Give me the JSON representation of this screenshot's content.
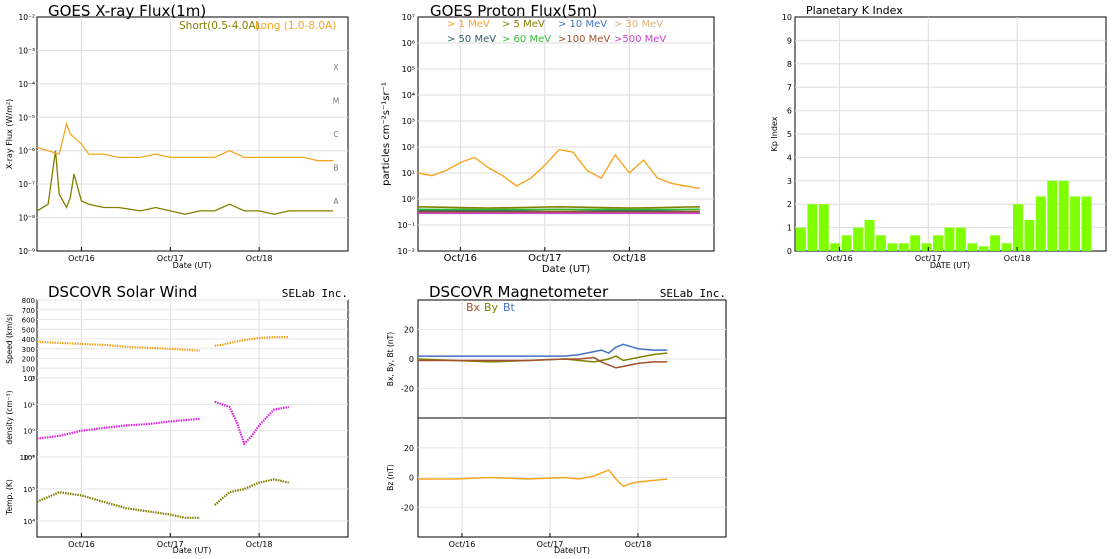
{
  "chart_data": [
    {
      "id": "xray",
      "type": "line",
      "title": "GOES X-ray Flux(1m)",
      "xlabel": "Date (UT)",
      "ylabel": "X-ray Flux (W/m²)",
      "yscale": "log",
      "ylim_exp": [
        -9,
        -2
      ],
      "y_ticks": [
        "10⁻⁹",
        "10⁻⁸",
        "10⁻⁷",
        "10⁻⁶",
        "10⁻⁵",
        "10⁻⁴",
        "10⁻³",
        "10⁻²"
      ],
      "x_ticks": [
        "Oct/16",
        "Oct/17",
        "Oct/18"
      ],
      "class_labels": [
        "A",
        "B",
        "C",
        "M",
        "X"
      ],
      "series": [
        {
          "name": "Short(0.5-4.0A)",
          "color": "#808000",
          "x_hours": [
            0,
            3,
            5,
            6,
            8,
            9,
            10,
            12,
            14,
            18,
            22,
            28,
            32,
            36,
            40,
            44,
            48,
            52,
            56,
            60,
            64,
            68,
            72,
            76,
            80
          ],
          "log_values": [
            -7.8,
            -7.6,
            -6.0,
            -7.3,
            -7.7,
            -7.4,
            -6.7,
            -7.5,
            -7.6,
            -7.7,
            -7.7,
            -7.8,
            -7.7,
            -7.8,
            -7.9,
            -7.8,
            -7.8,
            -7.6,
            -7.8,
            -7.8,
            -7.9,
            -7.8,
            -7.8,
            -7.8,
            -7.8
          ]
        },
        {
          "name": "Long (1.0-8.0A)",
          "color": "#f5a623",
          "x_hours": [
            0,
            3,
            6,
            8,
            9,
            10,
            12,
            14,
            18,
            22,
            28,
            32,
            36,
            40,
            44,
            48,
            52,
            56,
            60,
            64,
            68,
            72,
            76,
            80
          ],
          "log_values": [
            -5.9,
            -6.0,
            -6.1,
            -5.2,
            -5.5,
            -5.6,
            -5.8,
            -6.1,
            -6.1,
            -6.2,
            -6.2,
            -6.1,
            -6.2,
            -6.2,
            -6.2,
            -6.2,
            -6.0,
            -6.2,
            -6.2,
            -6.2,
            -6.2,
            -6.2,
            -6.3,
            -6.3
          ]
        }
      ]
    },
    {
      "id": "proton",
      "type": "line",
      "title": "GOES Proton Flux(5m)",
      "xlabel": "Date (UT)",
      "ylabel": "particles cm⁻²s⁻¹sr⁻¹",
      "yscale": "log",
      "ylim_exp": [
        -2,
        7
      ],
      "y_ticks": [
        "10⁻²",
        "10⁻¹",
        "10⁰",
        "10¹",
        "10²",
        "10³",
        "10⁴",
        "10⁵",
        "10⁶",
        "10⁷"
      ],
      "x_ticks": [
        "Oct/16",
        "Oct/17",
        "Oct/18"
      ],
      "series": [
        {
          "name": "> 1 MeV",
          "color": "#f5a623",
          "x_hours": [
            0,
            4,
            8,
            12,
            16,
            20,
            24,
            28,
            32,
            36,
            40,
            44,
            48,
            52,
            56,
            60,
            64,
            68,
            72,
            76,
            80
          ],
          "log_values": [
            1.0,
            0.9,
            1.1,
            1.4,
            1.6,
            1.2,
            0.9,
            0.5,
            0.8,
            1.3,
            1.9,
            1.8,
            1.1,
            0.8,
            1.7,
            1.0,
            1.5,
            0.8,
            0.6,
            0.5,
            0.4
          ]
        },
        {
          "name": "> 5 MeV",
          "color": "#808000",
          "x_hours": [
            0,
            20,
            40,
            60,
            80
          ],
          "log_values": [
            -0.3,
            -0.35,
            -0.3,
            -0.35,
            -0.3
          ]
        },
        {
          "name": "> 10 MeV",
          "color": "#4472c4",
          "x_hours": [
            0,
            20,
            40,
            60,
            80
          ],
          "log_values": [
            -0.4,
            -0.45,
            -0.4,
            -0.45,
            -0.4
          ]
        },
        {
          "name": "> 30 MeV",
          "color": "#e0b070",
          "x_hours": [
            0,
            20,
            40,
            60,
            80
          ],
          "log_values": [
            -0.45,
            -0.5,
            -0.45,
            -0.5,
            -0.45
          ]
        },
        {
          "name": "> 50 MeV",
          "color": "#2f5f5f",
          "x_hours": [
            0,
            20,
            40,
            60,
            80
          ],
          "log_values": [
            -0.45,
            -0.45,
            -0.5,
            -0.45,
            -0.5
          ]
        },
        {
          "name": "> 60 MeV",
          "color": "#33bb33",
          "x_hours": [
            0,
            20,
            40,
            60,
            80
          ],
          "log_values": [
            -0.4,
            -0.4,
            -0.4,
            -0.4,
            -0.4
          ]
        },
        {
          "name": ">100 MeV",
          "color": "#a0522d",
          "x_hours": [
            0,
            20,
            40,
            60,
            80
          ],
          "log_values": [
            -0.5,
            -0.5,
            -0.5,
            -0.5,
            -0.5
          ]
        },
        {
          "name": ">500 MeV",
          "color": "#cc44cc",
          "x_hours": [
            0,
            20,
            40,
            60,
            80
          ],
          "log_values": [
            -0.55,
            -0.55,
            -0.55,
            -0.55,
            -0.55
          ]
        }
      ]
    },
    {
      "id": "kp",
      "type": "bar",
      "title": "Planetary K Index",
      "xlabel": "DATE (UT)",
      "ylabel": "Kp Index",
      "ylim": [
        0,
        10
      ],
      "y_ticks": [
        0,
        1,
        2,
        3,
        4,
        5,
        6,
        7,
        8,
        9,
        10
      ],
      "x_ticks": [
        "Oct/16",
        "Oct/17",
        "Oct/18"
      ],
      "bar_color": "#7fff00",
      "values": [
        1.0,
        2.0,
        2.0,
        0.33,
        0.67,
        1.0,
        1.33,
        0.67,
        0.33,
        0.33,
        0.67,
        0.33,
        0.67,
        1.0,
        1.0,
        0.33,
        0.2,
        0.67,
        0.33,
        2.0,
        1.33,
        2.33,
        3.0,
        3.0,
        2.33,
        2.33
      ]
    },
    {
      "id": "solarwind",
      "type": "scatter",
      "title": "DSCOVR Solar Wind",
      "credit": "SELab Inc.",
      "xlabel": "Date (UT)",
      "x_ticks": [
        "Oct/16",
        "Oct/17",
        "Oct/18"
      ],
      "panels": [
        {
          "ylabel": "Speed (km/s)",
          "color": "#f5a623",
          "ylim": [
            0,
            800
          ],
          "y_ticks": [
            "0",
            "100",
            "200",
            "300",
            "400",
            "500",
            "600",
            "700",
            "800"
          ],
          "x_hours": [
            0,
            6,
            12,
            18,
            24,
            30,
            36,
            40,
            44,
            46,
            48,
            50,
            52,
            56,
            60,
            64,
            68
          ],
          "values": [
            370,
            360,
            350,
            340,
            320,
            310,
            300,
            290,
            280,
            null,
            330,
            340,
            360,
            390,
            410,
            420,
            420
          ]
        },
        {
          "ylabel": "density (cm⁻³)",
          "color": "#e020e0",
          "yscale": "log",
          "ylim_exp": [
            -1,
            2
          ],
          "y_ticks": [
            "10⁻¹",
            "10⁰",
            "10¹",
            "10²"
          ],
          "x_hours": [
            0,
            6,
            12,
            18,
            24,
            30,
            36,
            40,
            44,
            46,
            48,
            50,
            52,
            54,
            56,
            58,
            60,
            62,
            64,
            68
          ],
          "log_values": [
            -0.3,
            -0.2,
            0.0,
            0.1,
            0.2,
            0.25,
            0.35,
            0.4,
            0.45,
            null,
            1.1,
            1.0,
            0.9,
            0.3,
            -0.5,
            -0.2,
            0.2,
            0.5,
            0.8,
            0.9
          ]
        },
        {
          "ylabel": "Temp. (K)",
          "color": "#808000",
          "yscale": "log",
          "ylim_exp": [
            3.5,
            6
          ],
          "y_ticks": [
            "10⁴",
            "10⁵",
            "10⁶"
          ],
          "x_hours": [
            0,
            6,
            12,
            18,
            24,
            30,
            36,
            40,
            44,
            46,
            48,
            50,
            52,
            56,
            60,
            64,
            68
          ],
          "log_values": [
            4.6,
            4.9,
            4.8,
            4.6,
            4.4,
            4.3,
            4.2,
            4.1,
            4.1,
            null,
            4.5,
            4.7,
            4.9,
            5.0,
            5.2,
            5.3,
            5.2
          ]
        }
      ]
    },
    {
      "id": "magnetometer",
      "type": "line",
      "title": "DSCOVR Magnetometer",
      "credit": "SELab Inc.",
      "xlabel": "Date(UT)",
      "x_ticks": [
        "Oct/16",
        "Oct/17",
        "Oct/18"
      ],
      "legend": [
        {
          "name": "Bx",
          "color": "#a0522d"
        },
        {
          "name": "By",
          "color": "#808000"
        },
        {
          "name": "Bt",
          "color": "#4472c4"
        }
      ],
      "panels": [
        {
          "ylabel": "Bx, By, Bt (nT)",
          "ylim": [
            -40,
            40
          ],
          "y_ticks": [
            "20",
            "0",
            "-20"
          ],
          "series": [
            {
              "name": "Bt",
              "color": "#4472c4",
              "x_hours": [
                0,
                10,
                20,
                30,
                40,
                44,
                48,
                50,
                52,
                54,
                56,
                60,
                64,
                68
              ],
              "values": [
                2,
                2,
                2,
                2,
                2,
                3,
                5,
                6,
                4,
                8,
                10,
                7,
                6,
                6
              ]
            },
            {
              "name": "By",
              "color": "#808000",
              "x_hours": [
                0,
                10,
                20,
                30,
                40,
                44,
                48,
                50,
                52,
                54,
                56,
                60,
                64,
                68
              ],
              "values": [
                0,
                -1,
                -2,
                -1,
                0,
                -1,
                -2,
                -1,
                0,
                2,
                -1,
                1,
                3,
                4
              ]
            },
            {
              "name": "Bx",
              "color": "#a0522d",
              "x_hours": [
                0,
                10,
                20,
                30,
                40,
                44,
                48,
                50,
                52,
                54,
                56,
                60,
                64,
                68
              ],
              "values": [
                -1,
                -1,
                -1,
                -1,
                0,
                0,
                1,
                -2,
                -4,
                -6,
                -5,
                -3,
                -2,
                -2
              ]
            }
          ]
        },
        {
          "ylabel": "Bz (nT)",
          "ylim": [
            -40,
            40
          ],
          "y_ticks": [
            "20",
            "0",
            "-20"
          ],
          "series": [
            {
              "name": "Bz",
              "color": "#f5a623",
              "x_hours": [
                0,
                10,
                20,
                30,
                40,
                44,
                48,
                50,
                52,
                54,
                56,
                58,
                60,
                64,
                68
              ],
              "values": [
                -1,
                -1,
                0,
                -1,
                0,
                -1,
                1,
                3,
                5,
                -1,
                -6,
                -4,
                -3,
                -2,
                -1
              ]
            }
          ]
        }
      ]
    }
  ]
}
